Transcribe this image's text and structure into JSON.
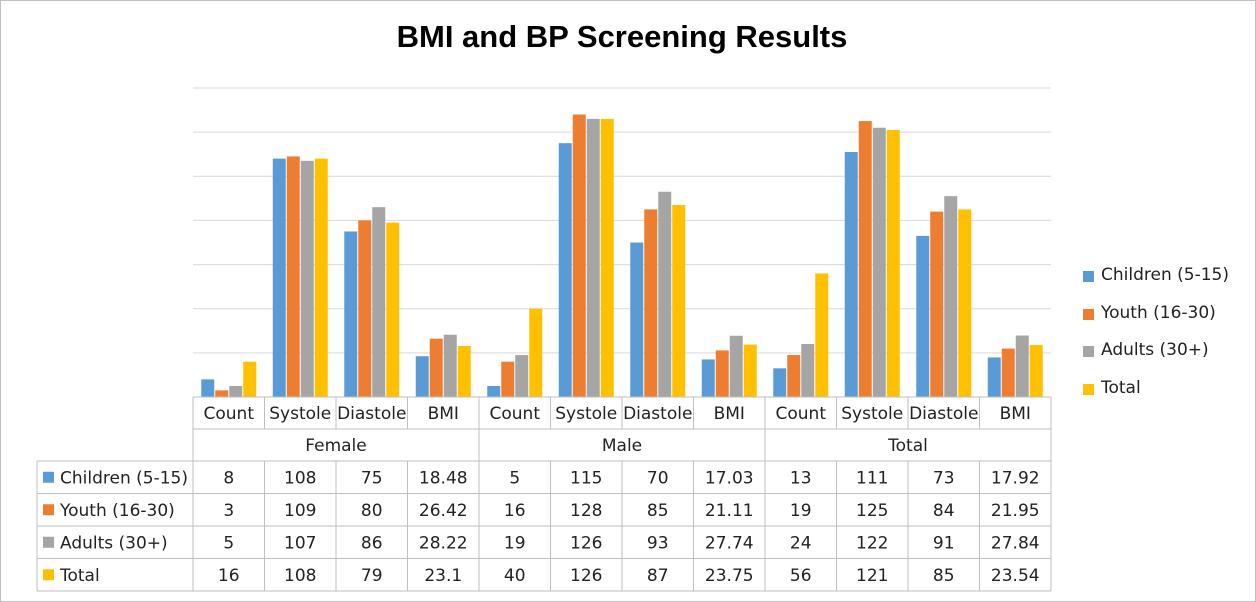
{
  "chart_data": {
    "type": "bar",
    "title": "BMI and BP Screening Results",
    "group_labels": [
      "Female",
      "Male",
      "Total"
    ],
    "categories": [
      "Count",
      "Systole",
      "Diastole",
      "BMI",
      "Count",
      "Systole",
      "Diastole",
      "BMI",
      "Count",
      "Systole",
      "Diastole",
      "BMI"
    ],
    "series": [
      {
        "name": "Children (5-15)",
        "color": "#5b9bd5",
        "values": [
          8,
          108,
          75,
          18.48,
          5,
          115,
          70,
          17.03,
          13,
          111,
          73,
          17.92
        ],
        "labels": [
          "8",
          "108",
          "75",
          "18.48",
          "5",
          "115",
          "70",
          "17.03",
          "13",
          "111",
          "73",
          "17.92"
        ]
      },
      {
        "name": "Youth (16-30)",
        "color": "#ed7d31",
        "values": [
          3,
          109,
          80,
          26.42,
          16,
          128,
          85,
          21.11,
          19,
          125,
          84,
          21.95
        ],
        "labels": [
          "3",
          "109",
          "80",
          "26.42",
          "16",
          "128",
          "85",
          "21.11",
          "19",
          "125",
          "84",
          "21.95"
        ]
      },
      {
        "name": "Adults (30+)",
        "color": "#a5a5a5",
        "values": [
          5,
          107,
          86,
          28.22,
          19,
          126,
          93,
          27.74,
          24,
          122,
          91,
          27.84
        ],
        "labels": [
          "5",
          "107",
          "86",
          "28.22",
          "19",
          "126",
          "93",
          "27.74",
          "24",
          "122",
          "91",
          "27.84"
        ]
      },
      {
        "name": "Total",
        "color": "#ffc000",
        "values": [
          16,
          108,
          79,
          23.1,
          40,
          126,
          87,
          23.75,
          56,
          121,
          85,
          23.54
        ],
        "labels": [
          "16",
          "108",
          "79",
          "23.1",
          "40",
          "126",
          "87",
          "23.75",
          "56",
          "121",
          "85",
          "23.54"
        ]
      }
    ],
    "ylim": [
      0,
      140
    ],
    "gridlines": true,
    "y_tick_labels_shown": false,
    "legend_position": "right",
    "data_table": true
  }
}
